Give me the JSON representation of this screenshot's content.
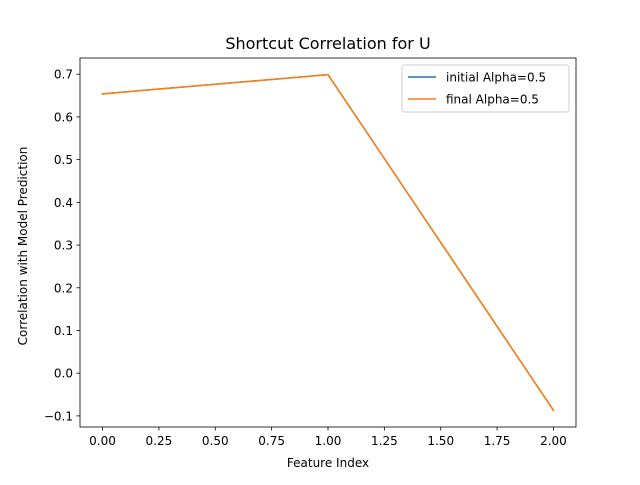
{
  "chart_data": {
    "type": "line",
    "title": "Shortcut Correlation for U",
    "xlabel": "Feature Index",
    "ylabel": "Correlation with Model Prediction",
    "x": [
      0.0,
      1.0,
      2.0
    ],
    "series": [
      {
        "name": "initial Alpha=0.5",
        "values": [
          0.654,
          0.699,
          -0.087
        ],
        "color": "#1f77b4"
      },
      {
        "name": "final Alpha=0.5",
        "values": [
          0.654,
          0.699,
          -0.087
        ],
        "color": "#ff7f0e"
      }
    ],
    "xlim": [
      -0.1,
      2.1
    ],
    "ylim": [
      -0.126,
      0.738
    ],
    "xticks": [
      0.0,
      0.25,
      0.5,
      0.75,
      1.0,
      1.25,
      1.5,
      1.75,
      2.0
    ],
    "xtick_labels": [
      "0.00",
      "0.25",
      "0.50",
      "0.75",
      "1.00",
      "1.25",
      "1.50",
      "1.75",
      "2.00"
    ],
    "yticks": [
      -0.1,
      0.0,
      0.1,
      0.2,
      0.3,
      0.4,
      0.5,
      0.6,
      0.7
    ],
    "ytick_labels": [
      "−0.1",
      "0.0",
      "0.1",
      "0.2",
      "0.3",
      "0.4",
      "0.5",
      "0.6",
      "0.7"
    ],
    "grid": false,
    "legend_position": "top-right"
  }
}
